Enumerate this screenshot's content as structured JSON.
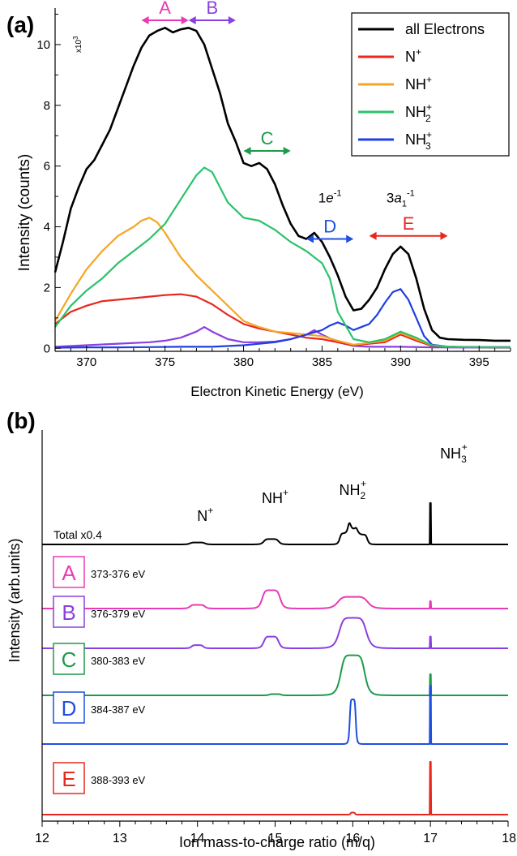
{
  "chart_data": [
    {
      "panel_label": "(a)",
      "type": "line",
      "xlabel": "Electron Kinetic Energy (eV)",
      "ylabel": "Intensity (counts)",
      "y_multiplier": "x10",
      "y_multiplier_exp": "3",
      "xlim": [
        368,
        397
      ],
      "ylim": [
        -0.1,
        11.2
      ],
      "x_ticks": [
        370,
        375,
        380,
        385,
        390,
        395
      ],
      "y_ticks": [
        0,
        2,
        4,
        6,
        8,
        10
      ],
      "legend_position": "top-right",
      "series": [
        {
          "name": "all Electrons",
          "color": "#000000",
          "x": [
            368,
            368.5,
            369,
            369.5,
            370,
            370.5,
            371,
            371.5,
            372,
            372.5,
            373,
            373.5,
            374,
            374.5,
            375,
            375.5,
            376,
            376.5,
            377,
            377.5,
            378,
            378.5,
            379,
            379.5,
            380,
            380.5,
            381,
            381.5,
            382,
            382.5,
            383,
            383.5,
            384,
            384.5,
            385,
            385.5,
            386,
            386.5,
            387,
            387.5,
            388,
            388.5,
            389,
            389.5,
            390,
            390.5,
            391,
            391.5,
            392,
            392.5,
            393,
            394,
            395,
            396,
            397
          ],
          "y": [
            2.5,
            3.5,
            4.6,
            5.3,
            5.9,
            6.2,
            6.7,
            7.2,
            7.9,
            8.6,
            9.3,
            9.9,
            10.3,
            10.45,
            10.55,
            10.4,
            10.5,
            10.55,
            10.45,
            10.0,
            9.2,
            8.4,
            7.4,
            6.8,
            6.1,
            6.0,
            6.1,
            5.9,
            5.4,
            4.7,
            4.1,
            3.7,
            3.6,
            3.8,
            3.5,
            3.0,
            2.4,
            1.7,
            1.25,
            1.3,
            1.6,
            2.0,
            2.6,
            3.1,
            3.35,
            3.1,
            2.3,
            1.3,
            0.6,
            0.35,
            0.3,
            0.28,
            0.27,
            0.25,
            0.25
          ]
        },
        {
          "name": "N",
          "superscript": "+",
          "color": "#e8281e",
          "x": [
            368,
            369,
            370,
            371,
            372,
            373,
            374,
            375,
            376,
            377,
            378,
            379,
            380,
            381,
            382,
            383,
            384,
            385,
            386,
            387,
            388,
            389,
            390,
            391,
            392,
            393,
            395,
            397
          ],
          "y": [
            0.8,
            1.2,
            1.4,
            1.55,
            1.6,
            1.65,
            1.7,
            1.75,
            1.78,
            1.7,
            1.45,
            1.1,
            0.8,
            0.65,
            0.55,
            0.45,
            0.35,
            0.3,
            0.2,
            0.1,
            0.15,
            0.2,
            0.45,
            0.25,
            0.08,
            0.05,
            0.03,
            0.03
          ]
        },
        {
          "name": "NH",
          "superscript": "+",
          "color": "#f5a623",
          "x": [
            368,
            369,
            370,
            371,
            372,
            373,
            373.5,
            374,
            374.5,
            375,
            376,
            377,
            378,
            379,
            380,
            381,
            382,
            383,
            384,
            385,
            386,
            387,
            388,
            389,
            390,
            391,
            392,
            393,
            395,
            397
          ],
          "y": [
            0.9,
            1.8,
            2.6,
            3.2,
            3.7,
            4.0,
            4.2,
            4.3,
            4.15,
            3.8,
            3.0,
            2.4,
            1.9,
            1.4,
            0.9,
            0.7,
            0.55,
            0.5,
            0.45,
            0.4,
            0.25,
            0.12,
            0.18,
            0.25,
            0.5,
            0.3,
            0.1,
            0.05,
            0.04,
            0.04
          ]
        },
        {
          "name": "NH",
          "subscript": "2",
          "superscript": "+",
          "color": "#2bc26b",
          "x": [
            368,
            369,
            370,
            371,
            372,
            373,
            374,
            375,
            376,
            377,
            377.5,
            378,
            379,
            380,
            381,
            382,
            383,
            384,
            385,
            385.5,
            386,
            387,
            388,
            389,
            390,
            391,
            392,
            393,
            395,
            397
          ],
          "y": [
            0.7,
            1.4,
            1.9,
            2.3,
            2.8,
            3.2,
            3.6,
            4.1,
            4.9,
            5.7,
            5.95,
            5.8,
            4.8,
            4.3,
            4.2,
            3.9,
            3.5,
            3.2,
            2.8,
            2.3,
            1.2,
            0.3,
            0.2,
            0.3,
            0.55,
            0.35,
            0.1,
            0.05,
            0.03,
            0.03
          ]
        },
        {
          "name": "NH",
          "subscript": "3",
          "superscript": "+",
          "color": "#1f3fe0",
          "x": [
            368,
            370,
            372,
            374,
            376,
            378,
            380,
            382,
            383,
            384,
            385,
            385.5,
            386,
            386.5,
            387,
            388,
            388.5,
            389,
            389.5,
            390,
            390.5,
            391,
            391.5,
            392,
            393,
            395,
            397
          ],
          "y": [
            0.02,
            0.03,
            0.03,
            0.04,
            0.05,
            0.05,
            0.1,
            0.2,
            0.3,
            0.45,
            0.6,
            0.75,
            0.85,
            0.75,
            0.6,
            0.8,
            1.1,
            1.5,
            1.85,
            1.95,
            1.6,
            1.0,
            0.4,
            0.12,
            0.05,
            0.04,
            0.04
          ]
        },
        {
          "name": "",
          "color": "#8b3fe0",
          "x": [
            368,
            370,
            372,
            374,
            375,
            376,
            377,
            377.5,
            378,
            379,
            380,
            381,
            382,
            383,
            384,
            384.5,
            385,
            386,
            387,
            388,
            390,
            392,
            397
          ],
          "y": [
            0.05,
            0.1,
            0.15,
            0.2,
            0.25,
            0.35,
            0.55,
            0.7,
            0.55,
            0.3,
            0.2,
            0.2,
            0.22,
            0.3,
            0.45,
            0.6,
            0.45,
            0.2,
            0.08,
            0.05,
            0.05,
            0.03,
            0.02
          ]
        }
      ],
      "range_markers": [
        {
          "label": "A",
          "x1": 373.5,
          "x2": 376.5,
          "level": 10.8,
          "color": "#e83ab5"
        },
        {
          "label": "B",
          "x1": 376.5,
          "x2": 379.5,
          "level": 10.8,
          "color": "#8b3fe0"
        },
        {
          "label": "C",
          "x1": 380,
          "x2": 383,
          "level": 6.5,
          "color": "#1e9a4a"
        },
        {
          "label": "D",
          "x1": 384,
          "x2": 387,
          "level": 3.6,
          "color": "#1f4fe0"
        },
        {
          "label": "E",
          "x1": 388,
          "x2": 393,
          "level": 3.7,
          "color": "#e8281e"
        }
      ],
      "annotations": [
        {
          "main": "1",
          "italic": "e",
          "sup": "-1",
          "x": 385.5,
          "y": 4.8
        },
        {
          "main": "3",
          "italic": "a",
          "sub": "1",
          "sup": "-1",
          "x": 390,
          "y": 4.8
        }
      ]
    },
    {
      "panel_label": "(b)",
      "type": "line",
      "xlabel": "Ion mass-to-charge ratio (m/q)",
      "ylabel": "Intensity (arb.units)",
      "xlim": [
        12,
        18
      ],
      "x_ticks": [
        12,
        13,
        14,
        15,
        16,
        17,
        18
      ],
      "peak_labels": [
        {
          "name": "N",
          "sup": "+",
          "x": 14.1
        },
        {
          "name": "NH",
          "sup": "+",
          "x": 15.0
        },
        {
          "name": "NH",
          "sub": "2",
          "sup": "+",
          "x": 16.0
        },
        {
          "name": "NH",
          "sub": "3",
          "sup": "+",
          "x": 17.3
        }
      ],
      "series": [
        {
          "label": "Total x0.4",
          "box": "",
          "range": "",
          "color": "#000000",
          "peaks": [
            {
              "center": 14.0,
              "width": 0.1,
              "height": 0.08
            },
            {
              "center": 14.95,
              "width": 0.1,
              "height": 0.22
            },
            {
              "center": 15.9,
              "width": 0.07,
              "height": 0.45
            },
            {
              "center": 16.0,
              "width": 0.06,
              "height": 0.6
            },
            {
              "center": 16.12,
              "width": 0.07,
              "height": 0.4
            },
            {
              "center": 17.0,
              "width": 0.005,
              "height": 1.7
            }
          ]
        },
        {
          "label": "",
          "box": "A",
          "range": "373-376 eV",
          "color": "#e83ab5",
          "peaks": [
            {
              "center": 14.0,
              "width": 0.1,
              "height": 0.1
            },
            {
              "center": 14.95,
              "width": 0.12,
              "height": 0.5
            },
            {
              "center": 16.0,
              "width": 0.2,
              "height": 0.32
            },
            {
              "center": 17.0,
              "width": 0.005,
              "height": 0.2
            }
          ]
        },
        {
          "label": "",
          "box": "B",
          "range": "376-379 eV",
          "color": "#8b3fe0",
          "peaks": [
            {
              "center": 14.0,
              "width": 0.08,
              "height": 0.08
            },
            {
              "center": 14.95,
              "width": 0.1,
              "height": 0.3
            },
            {
              "center": 16.0,
              "width": 0.18,
              "height": 0.78
            },
            {
              "center": 17.0,
              "width": 0.005,
              "height": 0.3
            }
          ]
        },
        {
          "label": "",
          "box": "C",
          "range": "380-383 eV",
          "color": "#1e9a4a",
          "peaks": [
            {
              "center": 15.0,
              "width": 0.08,
              "height": 0.03
            },
            {
              "center": 16.0,
              "width": 0.16,
              "height": 0.95
            },
            {
              "center": 17.0,
              "width": 0.005,
              "height": 0.5
            }
          ]
        },
        {
          "label": "",
          "box": "D",
          "range": "384-387 eV",
          "color": "#1f4fe0",
          "peaks": [
            {
              "center": 16.0,
              "width": 0.04,
              "height": 1.0
            },
            {
              "center": 17.0,
              "width": 0.005,
              "height": 1.3
            }
          ]
        },
        {
          "label": "",
          "box": "E",
          "range": "388-393 eV",
          "color": "#e8281e",
          "peaks": [
            {
              "center": 16.0,
              "width": 0.03,
              "height": 0.05
            },
            {
              "center": 17.0,
              "width": 0.005,
              "height": 1.3
            }
          ]
        }
      ]
    }
  ]
}
